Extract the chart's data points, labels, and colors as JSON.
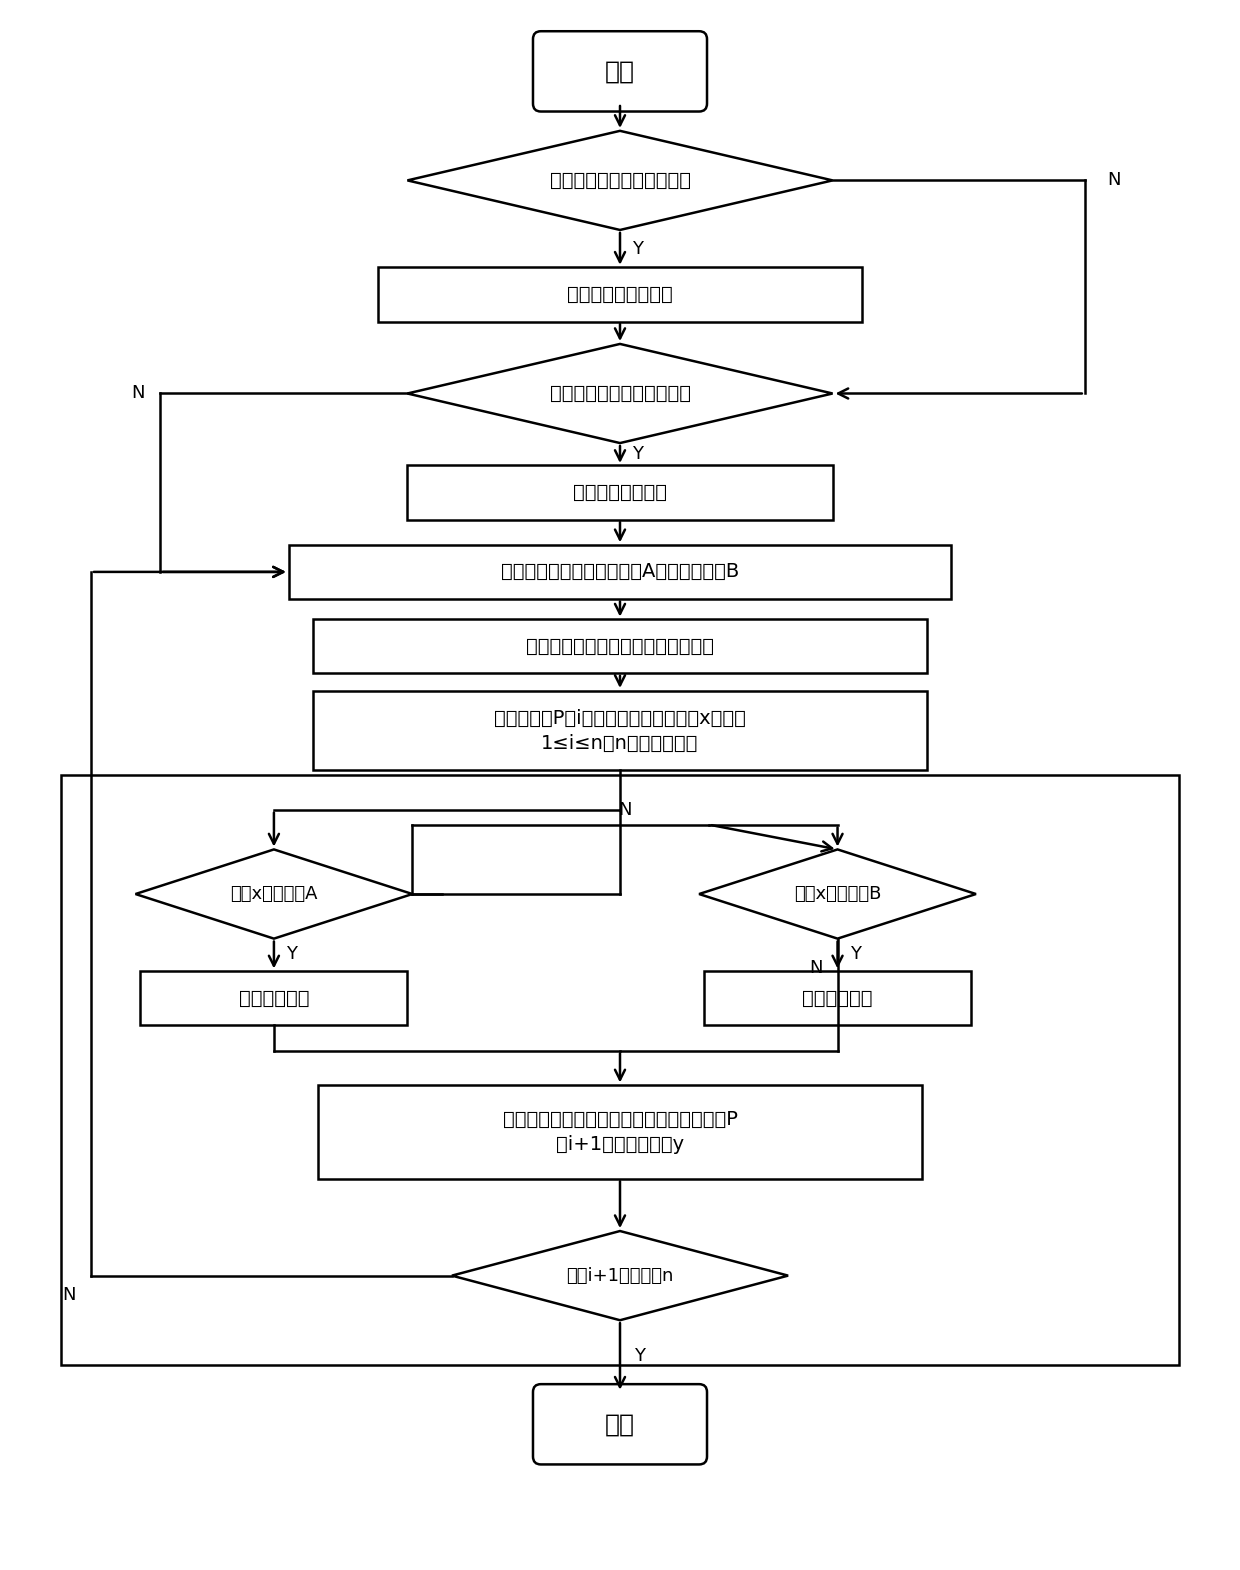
{
  "bg_color": "#ffffff",
  "line_color": "#000000",
  "text_color": "#000000",
  "lw": 1.8,
  "nodes": {
    "start_label": "开始",
    "d1_label": "判断虚拟机是否有特殊需求",
    "r1_label": "标记成一个虚拟机组",
    "d2_label": "判断物理机是否有特殊配置",
    "r2_label": "标记成一个节点组",
    "r3_label": "设定调度因素的下限阈值为A和上限阈值为B",
    "r4_label": "定时采集各物理机各时刻的调度因素",
    "r5_label": "某台物理机P（i）某时刻调度因素值为x，其中\n1≤i≤n，n为物理机总数",
    "d3_label": "判断x是否小于A",
    "d4_label": "判断x是否大于B",
    "r6_label": "执行节能调度",
    "r7_label": "执行性能调度",
    "r8_label": "重新采集各物理机的调度因素，获取某时刻P\n（i+1）的调度因素y",
    "d5_label": "判断i+1是否大于n",
    "end_label": "结束"
  }
}
